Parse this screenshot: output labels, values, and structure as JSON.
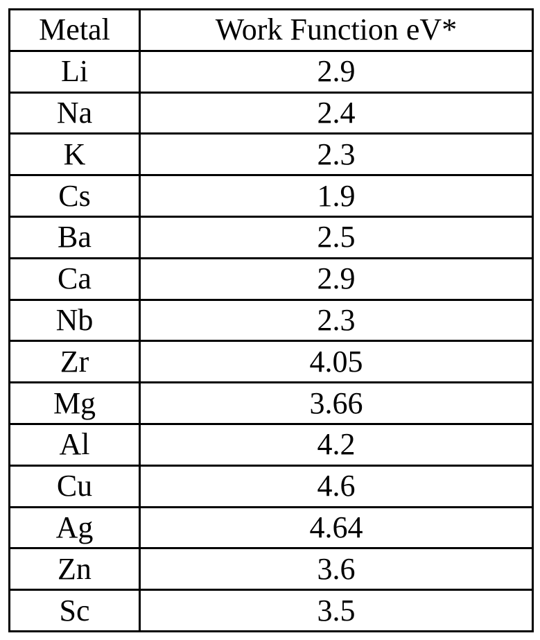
{
  "table": {
    "headers": [
      "Metal",
      "Work Function eV*"
    ],
    "rows": [
      [
        "Li",
        "2.9"
      ],
      [
        "Na",
        "2.4"
      ],
      [
        "K",
        "2.3"
      ],
      [
        "Cs",
        "1.9"
      ],
      [
        "Ba",
        "2.5"
      ],
      [
        "Ca",
        "2.9"
      ],
      [
        "Nb",
        "2.3"
      ],
      [
        "Zr",
        "4.05"
      ],
      [
        "Mg",
        "3.66"
      ],
      [
        "Al",
        "4.2"
      ],
      [
        "Cu",
        "4.6"
      ],
      [
        "Ag",
        "4.64"
      ],
      [
        "Zn",
        "3.6"
      ],
      [
        "Sc",
        "3.5"
      ]
    ]
  }
}
